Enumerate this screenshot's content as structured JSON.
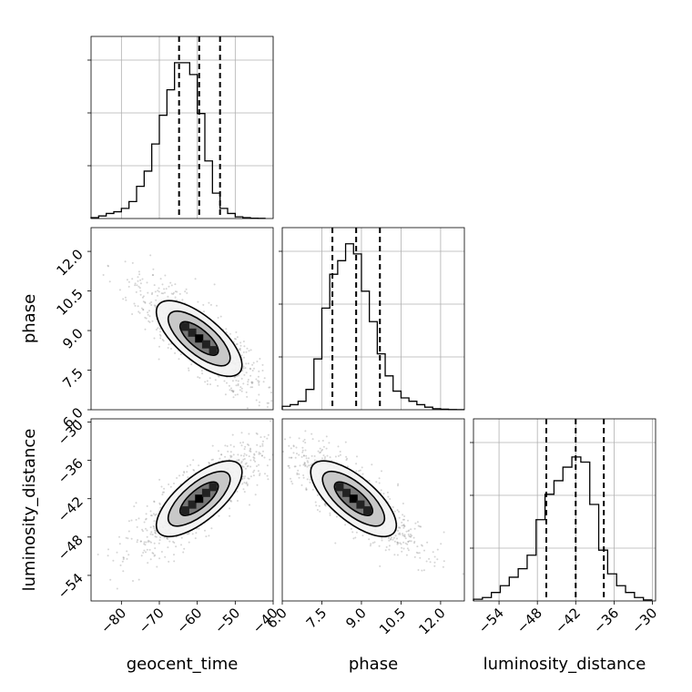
{
  "figure": {
    "background": "#ffffff",
    "accent": "#000000"
  },
  "chart_data": [
    {
      "type": "histogram",
      "variable": "geocent_time",
      "bins_x": [
        -88,
        -86,
        -84,
        -82,
        -80,
        -78,
        -76,
        -74,
        -72,
        -70,
        -68,
        -66,
        -64,
        -62,
        -60,
        -58,
        -56,
        -54,
        -52,
        -50,
        -48,
        -46,
        -44,
        -42
      ],
      "counts": [
        0.005,
        0.015,
        0.03,
        0.04,
        0.06,
        0.1,
        0.19,
        0.28,
        0.44,
        0.61,
        0.76,
        0.92,
        0.92,
        0.85,
        0.62,
        0.34,
        0.15,
        0.06,
        0.03,
        0.01,
        0.005,
        0.002,
        0.001
      ],
      "quantiles": [
        -64.8,
        -59.5,
        -54.0
      ],
      "xlim": [
        -88,
        -40
      ],
      "grid": true
    },
    {
      "type": "histogram",
      "variable": "phase",
      "bins_x": [
        6.0,
        6.3,
        6.6,
        6.9,
        7.2,
        7.5,
        7.8,
        8.1,
        8.4,
        8.7,
        9.0,
        9.3,
        9.6,
        9.9,
        10.2,
        10.5,
        10.8,
        11.1,
        11.4,
        11.7,
        12.0,
        12.3,
        12.6,
        12.9
      ],
      "counts": [
        0.02,
        0.03,
        0.05,
        0.12,
        0.3,
        0.6,
        0.8,
        0.88,
        0.98,
        0.92,
        0.7,
        0.52,
        0.33,
        0.2,
        0.11,
        0.07,
        0.05,
        0.03,
        0.015,
        0.006,
        0.003,
        0.001,
        0.0005
      ],
      "quantiles": [
        7.9,
        8.8,
        9.7
      ],
      "xlim": [
        6.0,
        12.9
      ],
      "grid": true
    },
    {
      "type": "histogram",
      "variable": "luminosity_distance",
      "bins_x": [
        -58,
        -56.6,
        -55.2,
        -53.8,
        -52.4,
        -51,
        -49.6,
        -48.2,
        -46.8,
        -45.4,
        -44,
        -42.6,
        -41.2,
        -39.8,
        -38.4,
        -37,
        -35.6,
        -34.2,
        -32.8,
        -31.4,
        -30
      ],
      "counts": [
        0.01,
        0.02,
        0.05,
        0.09,
        0.14,
        0.19,
        0.27,
        0.48,
        0.63,
        0.71,
        0.79,
        0.85,
        0.82,
        0.57,
        0.3,
        0.16,
        0.09,
        0.05,
        0.02,
        0.006
      ],
      "quantiles": [
        -46.6,
        -42.0,
        -37.6
      ],
      "xlim": [
        -58,
        -29.5
      ],
      "grid": true
    },
    {
      "type": "scatter-density",
      "x_variable": "geocent_time",
      "y_variable": "phase",
      "center": [
        -59.5,
        8.7
      ],
      "orientation": "negative correlation",
      "xlim": [
        -88,
        -40
      ],
      "ylim": [
        6.0,
        12.9
      ]
    },
    {
      "type": "scatter-density",
      "x_variable": "geocent_time",
      "y_variable": "luminosity_distance",
      "center": [
        -59.5,
        -42.0
      ],
      "orientation": "positive correlation",
      "xlim": [
        -88,
        -40
      ],
      "ylim": [
        -58,
        -29.5
      ]
    },
    {
      "type": "scatter-density",
      "x_variable": "phase",
      "y_variable": "luminosity_distance",
      "center": [
        8.7,
        -42.0
      ],
      "orientation": "negative correlation",
      "xlim": [
        6.0,
        12.9
      ],
      "ylim": [
        -58,
        -29.5
      ]
    }
  ],
  "axes": {
    "geocent_time": {
      "label": "geocent_time",
      "ticks": [
        -80,
        -70,
        -60,
        -50,
        -40
      ],
      "tick_labels": [
        "−80",
        "−70",
        "−60",
        "−50",
        "−40"
      ]
    },
    "phase": {
      "label": "phase",
      "ticks": [
        6.0,
        7.5,
        9.0,
        10.5,
        12.0
      ],
      "tick_labels": [
        "6.0",
        "7.5",
        "9.0",
        "10.5",
        "12.0"
      ]
    },
    "luminosity_distance": {
      "label": "luminosity_distance",
      "ticks": [
        -54,
        -48,
        -42,
        -36,
        -30
      ],
      "tick_labels": [
        "−54",
        "−48",
        "−42",
        "−36",
        "−30"
      ]
    }
  }
}
